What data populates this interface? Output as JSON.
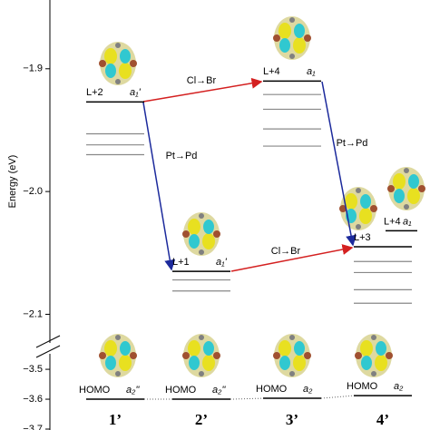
{
  "chart_data": {
    "type": "levels",
    "y_label": "Energy (eV)",
    "ylim": [
      -1.844,
      -2.127
    ],
    "yticks": [
      {
        "value": -1.9,
        "label": "−1.9"
      },
      {
        "value": -2.0,
        "label": "−2.0"
      },
      {
        "value": -2.1,
        "label": "−2.1"
      }
    ],
    "ylim_break": [
      -3.433,
      -3.703
    ],
    "yticks_break": [
      {
        "value": -3.5,
        "label": "−3.5"
      },
      {
        "value": -3.6,
        "label": "−3.6"
      },
      {
        "value": -3.7,
        "label": "−3.7"
      }
    ],
    "series": [
      {
        "name": "1’",
        "levels": [
          {
            "label": "L+2",
            "sym": "a₁'",
            "value": -1.927
          }
        ],
        "others": [
          -1.953,
          -1.962,
          -1.97
        ],
        "homo": {
          "label": "HOMO",
          "sym": "a₂''",
          "value": -3.6
        }
      },
      {
        "name": "2’",
        "levels": [
          {
            "label": "L+1",
            "sym": "a₁'",
            "value": -2.065
          }
        ],
        "others": [
          -2.072,
          -2.081
        ],
        "homo": {
          "label": "HOMO",
          "sym": "a₂''",
          "value": -3.6
        }
      },
      {
        "name": "3’",
        "levels": [
          {
            "label": "L+4",
            "sym": "a₁",
            "value": -1.91
          }
        ],
        "others": [
          -1.921,
          -1.933,
          -1.949,
          -1.963
        ],
        "homo": {
          "label": "HOMO",
          "sym": "a₂",
          "value": -3.597
        }
      },
      {
        "name": "4’",
        "levels": [
          {
            "label": "L+3",
            "sym": "",
            "value": -2.045
          },
          {
            "label": "L+4",
            "sym": "a₁",
            "value": -2.032
          }
        ],
        "others": [
          -2.057,
          -2.066,
          -2.08,
          -2.091
        ],
        "homo": {
          "label": "HOMO",
          "sym": "a₂",
          "value": -3.588
        }
      }
    ],
    "transitions": [
      {
        "label": "Cl→Br",
        "color": "#d42020"
      },
      {
        "label": "Pt→Pd",
        "color": "#1c2a9c"
      },
      {
        "label": "Cl→Br",
        "color": "#d42020"
      },
      {
        "label": "Pt→Pd",
        "color": "#1c2a9c"
      }
    ]
  }
}
